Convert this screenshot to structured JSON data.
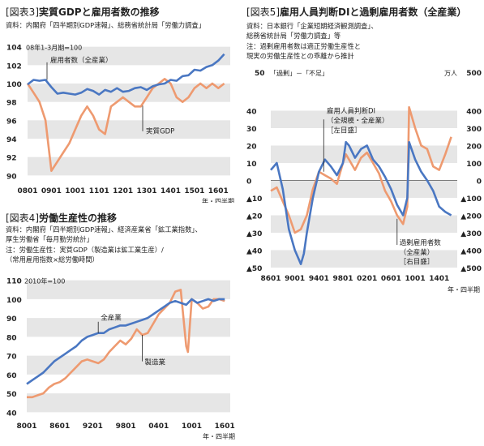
{
  "colors": {
    "blue": "#4a77c2",
    "orange": "#ee9a70",
    "band": "#e6e6e6"
  },
  "fig3": {
    "title_bracket": "[図表3]",
    "title": "実質GDPと雇用者数の推移",
    "source": "資料：内閣府「四半期別GDP速報」、総務省統計局「労働力調査」",
    "index_note": "08年1-3月期=100",
    "x_unit": "年・四半期",
    "label_employees": "雇用者数（全産業）",
    "label_gdp": "実質GDP",
    "chart_data": {
      "type": "line",
      "x_ticks": [
        "0801",
        "0901",
        "1001",
        "1101",
        "1201",
        "1301",
        "1401",
        "1501",
        "1601"
      ],
      "y_ticks": [
        90,
        92,
        94,
        96,
        98,
        100,
        102,
        104
      ],
      "ylim": [
        89.5,
        104.5
      ],
      "xlim": [
        0,
        34
      ],
      "series": [
        {
          "name": "雇用者数（全産業）",
          "color": "blue",
          "x": [
            0,
            1,
            2,
            3,
            4,
            5,
            6,
            7,
            8,
            9,
            10,
            11,
            12,
            13,
            14,
            15,
            16,
            17,
            18,
            19,
            20,
            21,
            22,
            23,
            24,
            25,
            26,
            27,
            28,
            29,
            30,
            31,
            32,
            33
          ],
          "y": [
            99.9,
            100.4,
            100.3,
            100.4,
            99.6,
            98.9,
            99.0,
            98.9,
            98.8,
            99.0,
            99.4,
            99.2,
            98.8,
            99.3,
            99.1,
            99.5,
            99.1,
            99.2,
            99.5,
            99.6,
            99.3,
            99.7,
            99.9,
            100.0,
            100.4,
            100.3,
            100.8,
            100.9,
            101.5,
            101.4,
            101.8,
            102.0,
            102.5,
            103.2
          ]
        },
        {
          "name": "実質GDP",
          "color": "orange",
          "x": [
            0,
            1,
            2,
            3,
            4,
            5,
            6,
            7,
            8,
            9,
            10,
            11,
            12,
            13,
            14,
            15,
            16,
            17,
            18,
            19,
            20,
            21,
            22,
            23,
            24,
            25,
            26,
            27,
            28,
            29,
            30,
            31,
            32,
            33
          ],
          "y": [
            100.0,
            99.0,
            98.0,
            96.0,
            90.5,
            91.5,
            92.5,
            93.5,
            95.0,
            96.5,
            97.5,
            96.5,
            95.0,
            94.5,
            97.5,
            98.0,
            98.5,
            98.0,
            97.5,
            97.5,
            98.5,
            99.5,
            100.0,
            100.5,
            100.0,
            98.5,
            98.0,
            98.5,
            99.5,
            100.0,
            99.5,
            100.0,
            99.5,
            100.0
          ]
        }
      ]
    }
  },
  "fig4": {
    "title_bracket": "[図表4]",
    "title": "労働生産性の推移",
    "source1": "資料：内閣府「四半期別GDP速報」、経済産業省「鉱工業指数」、",
    "source2": "厚生労働省「毎月勤労統計」",
    "note1": "注：労働生産性：実質GDP（製造業は鉱工業生産）/",
    "note2": "（常用雇用指数×総労働時間）",
    "index_note": "2010年=100",
    "x_unit": "年・四半期",
    "label_all": "全産業",
    "label_mfg": "製造業",
    "chart_data": {
      "type": "line",
      "x_ticks": [
        "8001",
        "8601",
        "9201",
        "9801",
        "0401",
        "1001",
        "1601"
      ],
      "y_ticks": [
        40,
        50,
        60,
        70,
        80,
        90,
        100,
        110
      ],
      "ylim": [
        38,
        112
      ],
      "xlim": [
        1980,
        2017
      ],
      "series": [
        {
          "name": "全産業",
          "color": "blue",
          "x": [
            1980,
            1981,
            1982,
            1983,
            1984,
            1985,
            1986,
            1987,
            1988,
            1989,
            1990,
            1991,
            1992,
            1993,
            1994,
            1995,
            1996,
            1997,
            1998,
            1999,
            2000,
            2001,
            2002,
            2003,
            2004,
            2005,
            2006,
            2007,
            2008,
            2009,
            2010,
            2011,
            2012,
            2013,
            2014,
            2015,
            2016
          ],
          "y": [
            55,
            57,
            59,
            61,
            64,
            67,
            69,
            71,
            73,
            75,
            78,
            80,
            81,
            82,
            82,
            84,
            85,
            86,
            86,
            87,
            88,
            89,
            90,
            92,
            94,
            96,
            98,
            99,
            98,
            97,
            100,
            98,
            99,
            100,
            99,
            100,
            100
          ]
        },
        {
          "name": "製造業",
          "color": "orange",
          "x": [
            1980,
            1981,
            1982,
            1983,
            1984,
            1985,
            1986,
            1987,
            1988,
            1989,
            1990,
            1991,
            1992,
            1993,
            1994,
            1995,
            1996,
            1997,
            1998,
            1999,
            2000,
            2001,
            2002,
            2003,
            2004,
            2005,
            2006,
            2007,
            2008,
            2009,
            2009.3,
            2010,
            2011,
            2012,
            2013,
            2014,
            2015,
            2016
          ],
          "y": [
            48,
            48,
            49,
            50,
            53,
            55,
            56,
            58,
            61,
            64,
            67,
            68,
            67,
            66,
            68,
            72,
            75,
            78,
            76,
            79,
            84,
            81,
            82,
            87,
            92,
            95,
            98,
            104,
            105,
            75,
            72,
            100,
            98,
            95,
            96,
            100,
            100,
            99
          ]
        }
      ]
    }
  },
  "fig5": {
    "title_bracket": "[図表5]",
    "title": "雇用人員判断DIと過剰雇用者数（全産業）",
    "source1": "資料：日本銀行「企業短期経済観測調査」、",
    "source2": "総務省統計局「労働力調査」等",
    "note1": "注：過剰雇用者数は適正労働生産性と",
    "note2": "現実の労働生産性との乖離から推計",
    "left_unit": "「過剰」－「不足」",
    "right_unit": "万人",
    "x_unit": "年・四半期",
    "label_di1": "雇用人員判断DI",
    "label_di2": "（全規模・全産業）",
    "label_di3": "［左目盛］",
    "label_ex1": "過剰雇用者数",
    "label_ex2": "（全産業）",
    "label_ex3": "［右目盛］",
    "chart_data": {
      "type": "line",
      "x_ticks": [
        "8601",
        "9001",
        "9401",
        "9801",
        "0201",
        "0601",
        "1001",
        "1401"
      ],
      "y_ticks_left": [
        "50",
        "40",
        "30",
        "20",
        "10",
        "0",
        "▲10",
        "▲20",
        "▲30",
        "▲40",
        "▲50"
      ],
      "y_ticks_right": [
        "500",
        "400",
        "300",
        "200",
        "100",
        "0",
        "▲100",
        "▲200",
        "▲300",
        "▲400",
        "▲500"
      ],
      "ylim": [
        -50,
        50
      ],
      "xlim": [
        1986,
        2017
      ],
      "series": [
        {
          "name": "雇用人員判断DI（全規模・全産業）",
          "color": "blue",
          "axis": "left",
          "x": [
            1986,
            1987,
            1988,
            1989,
            1990,
            1991,
            1991.5,
            1992,
            1993,
            1994,
            1995,
            1996,
            1997,
            1998,
            1998.5,
            1999,
            2000,
            2001,
            2002,
            2003,
            2004,
            2005,
            2006,
            2007,
            2008,
            2008.7,
            2009,
            2010,
            2011,
            2012,
            2013,
            2014,
            2015,
            2016
          ],
          "y": [
            6,
            10,
            -5,
            -28,
            -40,
            -48,
            -42,
            -30,
            -10,
            5,
            12,
            8,
            3,
            10,
            22,
            20,
            13,
            18,
            20,
            12,
            8,
            2,
            -5,
            -14,
            -20,
            -10,
            22,
            12,
            5,
            0,
            -6,
            -15,
            -18,
            -20
          ]
        },
        {
          "name": "過剰雇用者数（全産業）",
          "color": "orange",
          "axis": "right",
          "x": [
            1986,
            1987,
            1988,
            1989,
            1990,
            1991,
            1992,
            1993,
            1994,
            1995,
            1996,
            1997,
            1998,
            1998.5,
            1999,
            2000,
            2001,
            2002,
            2003,
            2004,
            2005,
            2006,
            2007,
            2008,
            2008.7,
            2009,
            2010,
            2011,
            2012,
            2013,
            2014,
            2015,
            2016
          ],
          "y": [
            -60,
            -40,
            -120,
            -200,
            -300,
            -280,
            -200,
            -50,
            50,
            30,
            10,
            -20,
            100,
            150,
            120,
            60,
            130,
            160,
            100,
            40,
            -60,
            -120,
            -200,
            -250,
            -150,
            420,
            300,
            200,
            180,
            80,
            60,
            150,
            250
          ]
        }
      ]
    }
  }
}
